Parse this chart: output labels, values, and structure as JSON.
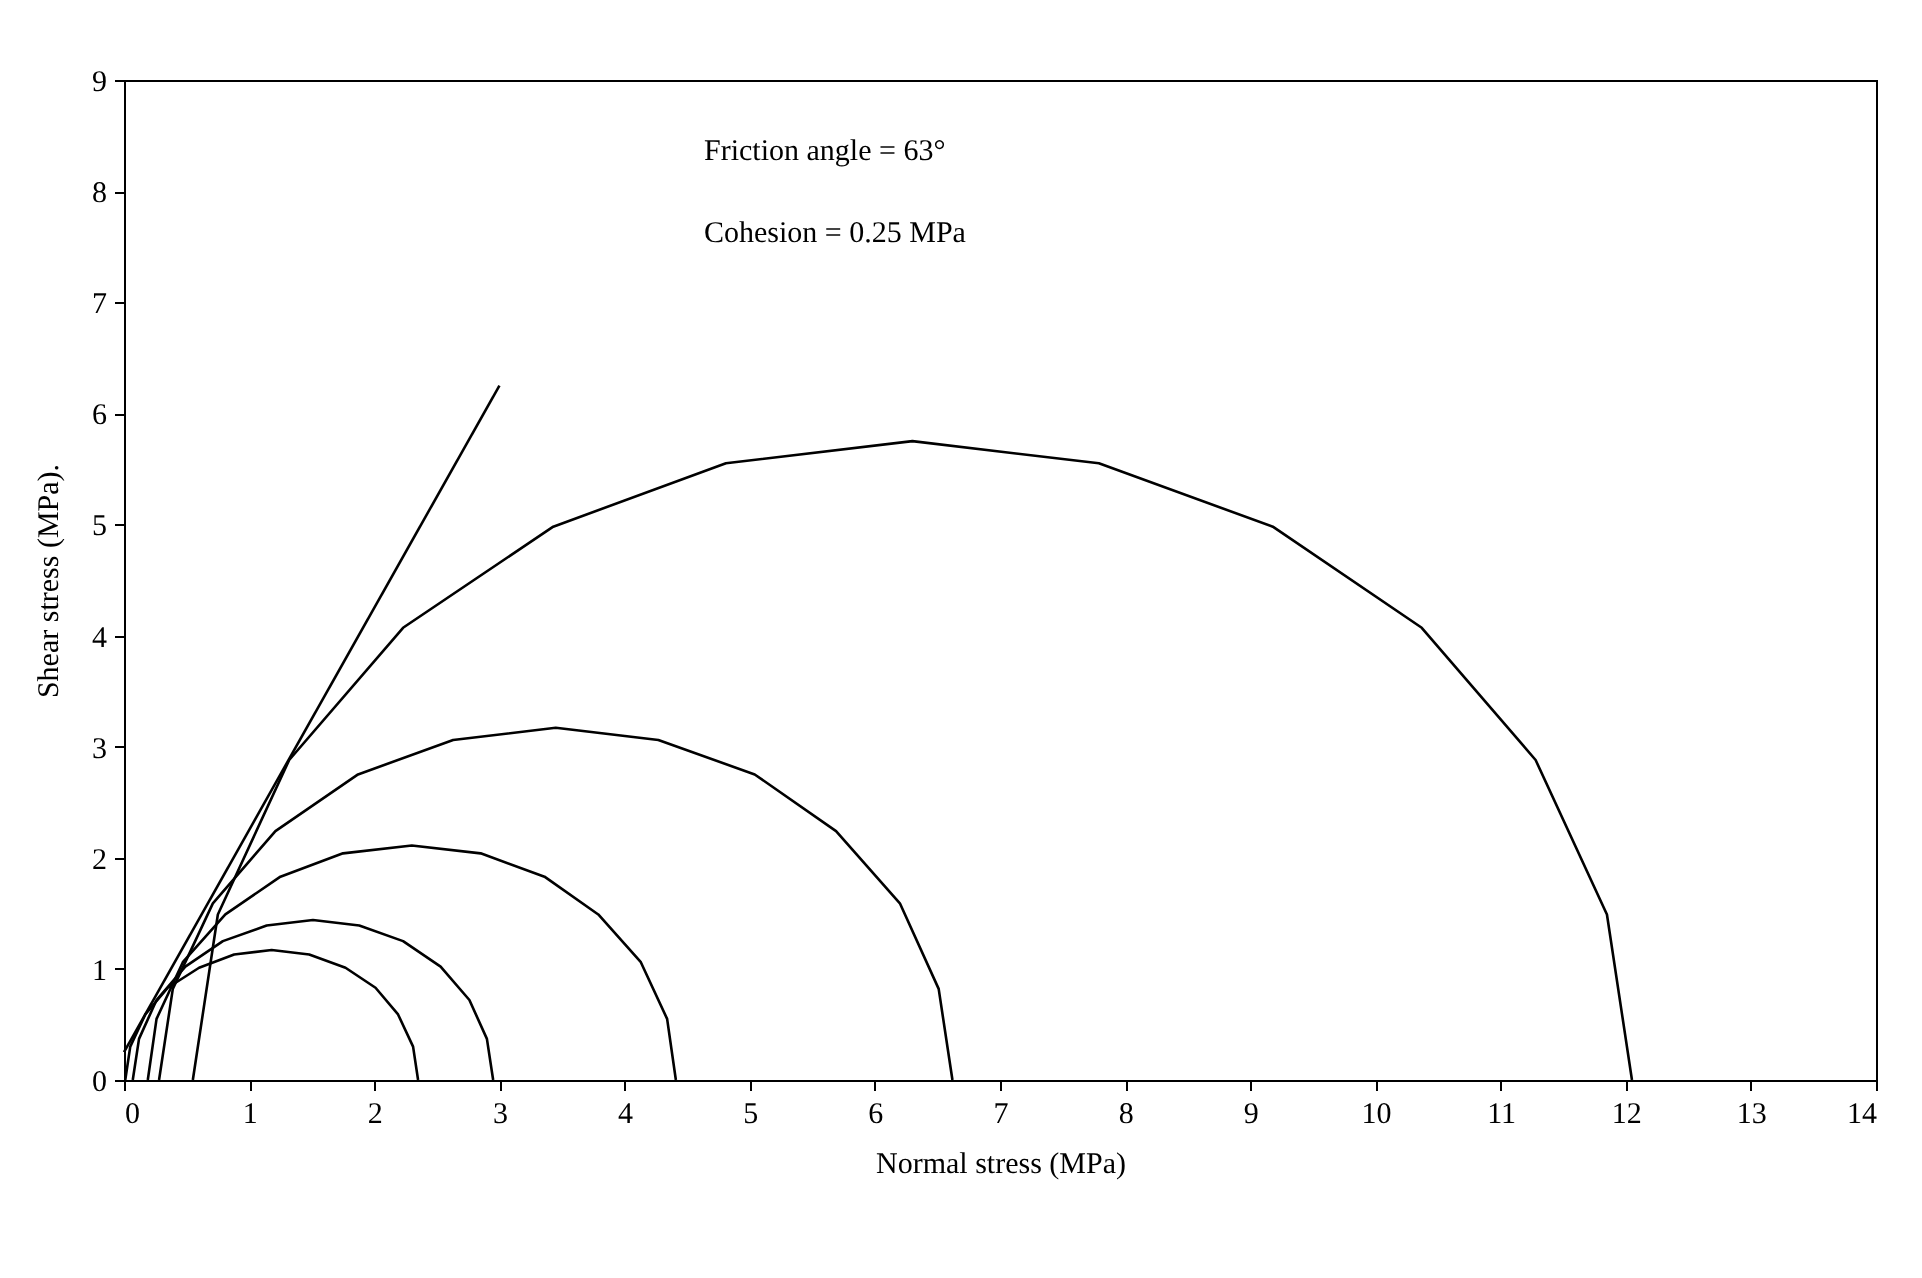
{
  "chart_data": {
    "type": "line",
    "xlabel": "Normal stress (MPa)",
    "ylabel": "Shear stress (MPa).",
    "annotations": [
      "Friction angle =  63°",
      "Cohesion = 0.25 MPa"
    ],
    "xlim": [
      0,
      14
    ],
    "xticks": [
      0,
      1,
      2,
      3,
      4,
      5,
      6,
      7,
      8,
      9,
      10,
      11,
      12,
      13,
      14
    ],
    "ylim": [
      0,
      9
    ],
    "yticks": [
      0,
      1,
      2,
      3,
      4,
      5,
      6,
      7,
      8,
      9
    ],
    "series": [
      {
        "color": "#000000",
        "x": [
          0.01,
          0.05,
          0.17,
          0.35,
          0.6,
          0.88,
          1.18,
          1.48,
          1.77,
          2.01,
          2.19,
          2.31,
          2.35
        ],
        "values": [
          0,
          0.3,
          0.59,
          0.83,
          1.01,
          1.13,
          1.17,
          1.13,
          1.01,
          0.83,
          0.59,
          0.3,
          0
        ]
      },
      {
        "color": "#000000",
        "x": [
          0.07,
          0.12,
          0.26,
          0.49,
          0.79,
          1.14,
          1.51,
          1.88,
          2.23,
          2.53,
          2.76,
          2.9,
          2.95
        ],
        "values": [
          0,
          0.37,
          0.72,
          1.02,
          1.25,
          1.39,
          1.44,
          1.39,
          1.25,
          1.02,
          0.72,
          0.37,
          0
        ]
      },
      {
        "color": "#000000",
        "x": [
          0.19,
          0.26,
          0.47,
          0.81,
          1.25,
          1.75,
          2.3,
          2.85,
          3.36,
          3.79,
          4.13,
          4.34,
          4.41
        ],
        "values": [
          0,
          0.55,
          1.06,
          1.49,
          1.83,
          2.04,
          2.11,
          2.04,
          1.83,
          1.49,
          1.06,
          0.55,
          0
        ]
      },
      {
        "color": "#000000",
        "x": [
          0.28,
          0.39,
          0.71,
          1.21,
          1.87,
          2.63,
          3.45,
          4.27,
          5.04,
          5.69,
          6.2,
          6.51,
          6.62
        ],
        "values": [
          0,
          0.82,
          1.59,
          2.24,
          2.75,
          3.06,
          3.17,
          3.06,
          2.75,
          2.24,
          1.59,
          0.82,
          0
        ]
      },
      {
        "color": "#000000",
        "x": [
          0.55,
          0.75,
          1.32,
          2.23,
          3.43,
          4.81,
          6.3,
          7.79,
          9.18,
          10.37,
          11.28,
          11.85,
          12.05
        ],
        "values": [
          0,
          1.49,
          2.88,
          4.07,
          4.98,
          5.55,
          5.75,
          5.55,
          4.98,
          4.07,
          2.88,
          1.49,
          0
        ]
      },
      {
        "color": "#000000",
        "x": [
          0,
          3
        ],
        "values": [
          0.25,
          6.25
        ]
      }
    ]
  }
}
